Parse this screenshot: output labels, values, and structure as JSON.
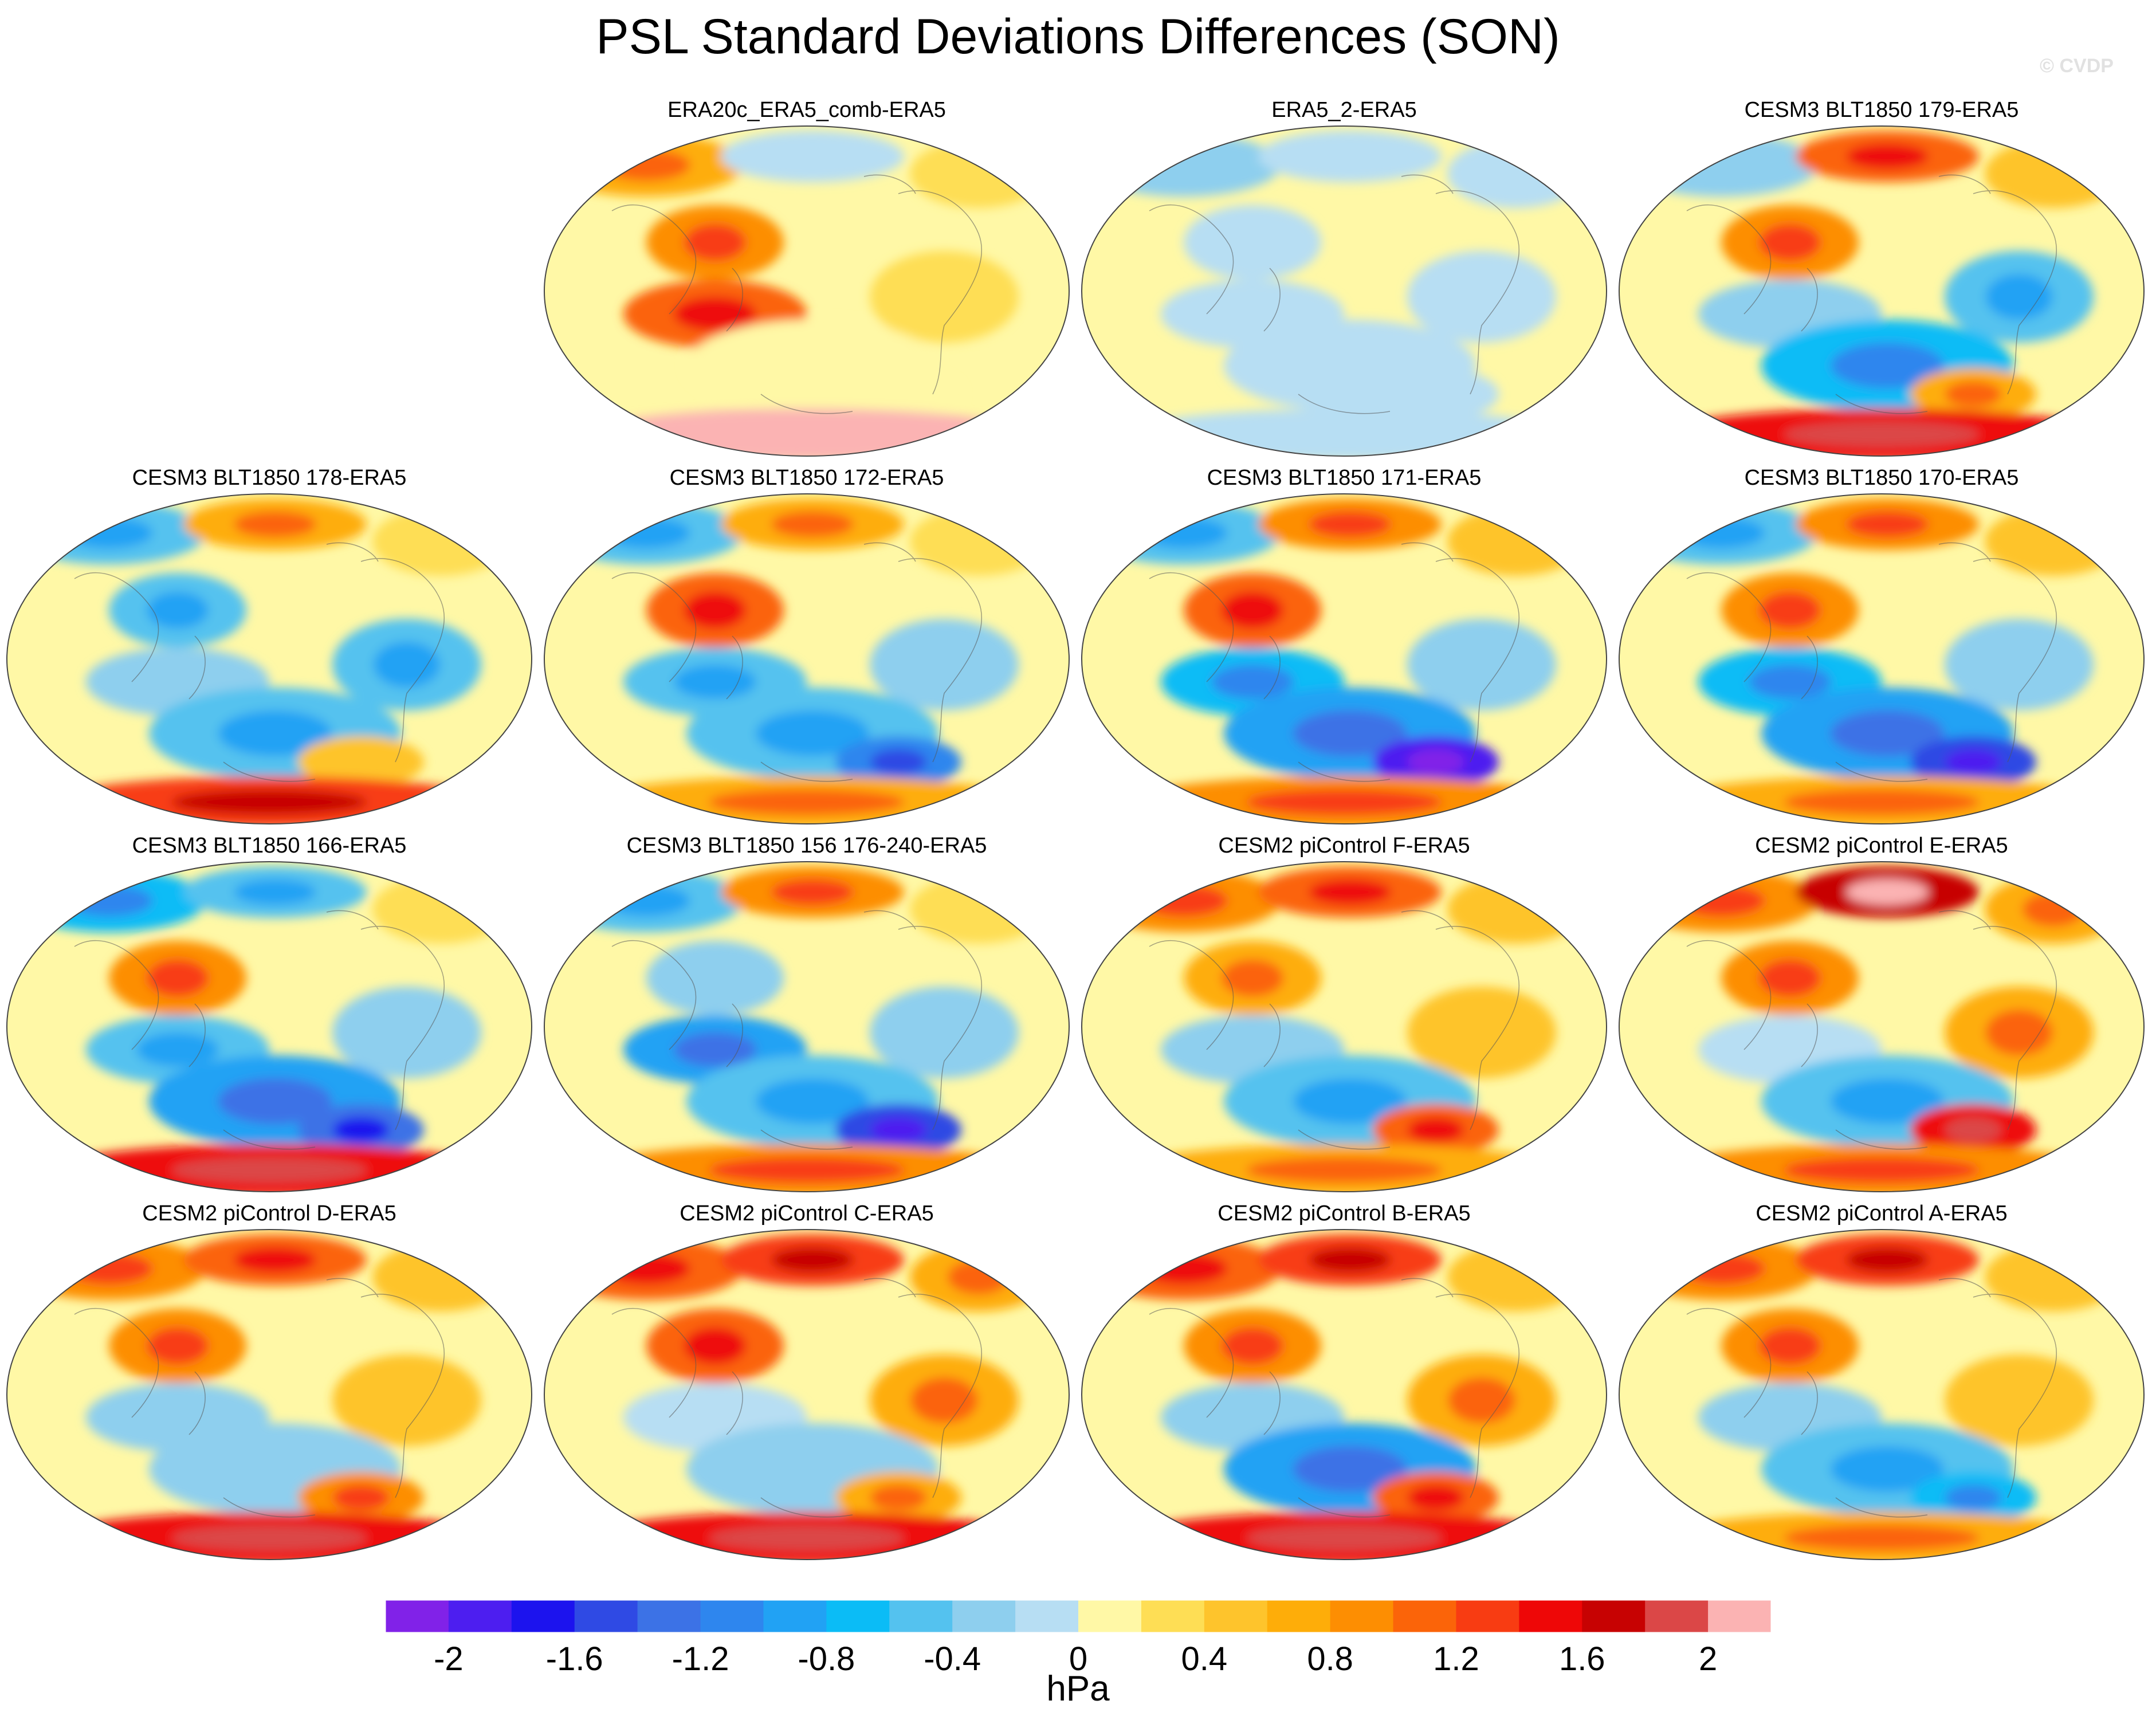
{
  "figure": {
    "title": "PSL Standard Deviations Differences (SON)",
    "watermark": "© CVDP",
    "units": "hPa"
  },
  "chart_data": {
    "type": "heatmap",
    "title": "PSL Standard Deviations Differences (SON)",
    "projection": "Robinson (global map panels, Pacific-centered)",
    "variable": "PSL standard deviation difference",
    "season": "SON",
    "units": "hPa",
    "colorbar": {
      "levels": [
        -2.2,
        -2.0,
        -1.8,
        -1.6,
        -1.4,
        -1.2,
        -1.0,
        -0.8,
        -0.6,
        -0.4,
        -0.2,
        0.0,
        0.2,
        0.4,
        0.6,
        0.8,
        1.0,
        1.2,
        1.4,
        1.6,
        1.8,
        2.0,
        2.2
      ],
      "tick_values": [
        -2,
        -1.6,
        -1.2,
        -0.8,
        -0.4,
        0,
        0.4,
        0.8,
        1.2,
        1.6,
        2
      ],
      "tick_labels": [
        "-2",
        "-1.6",
        "-1.2",
        "-0.8",
        "-0.4",
        "0",
        "0.4",
        "0.8",
        "1.2",
        "1.6",
        "2"
      ],
      "colors": [
        "#8122e8",
        "#4d1ef0",
        "#1c13ee",
        "#2f4ae4",
        "#3c72e6",
        "#2e86ee",
        "#21a2f4",
        "#0bbcf6",
        "#54c2ef",
        "#8ecfee",
        "#b7def3",
        "#fff8a6",
        "#fede55",
        "#fec42c",
        "#fead09",
        "#fd8e02",
        "#fb6409",
        "#f83c12",
        "#ee0707",
        "#c70202",
        "#db4747",
        "#fbb3b3"
      ],
      "label": "hPa"
    },
    "panels": [
      {
        "label": "ERA20c_ERA5_comb-ERA5",
        "pattern": [
          3,
          -1,
          1,
          4,
          5,
          1,
          0,
          0,
          10
        ]
      },
      {
        "label": "ERA5_2-ERA5",
        "pattern": [
          -2,
          -1,
          -1,
          -1,
          -1,
          -1,
          -1,
          -1,
          -1
        ]
      },
      {
        "label": "CESM3 BLT1850 179-ERA5",
        "pattern": [
          -2,
          5,
          2,
          4,
          -2,
          -3,
          -4,
          3,
          7
        ]
      },
      {
        "label": "CESM3 BLT1850 178-ERA5",
        "pattern": [
          -3,
          3,
          1,
          -3,
          -2,
          -3,
          -3,
          2,
          6
        ]
      },
      {
        "label": "CESM3 BLT1850 172-ERA5",
        "pattern": [
          -3,
          3,
          1,
          5,
          -3,
          -2,
          -3,
          -6,
          3
        ]
      },
      {
        "label": "CESM3 BLT1850 171-ERA5",
        "pattern": [
          -3,
          4,
          2,
          5,
          -4,
          -2,
          -5,
          -10,
          4
        ]
      },
      {
        "label": "CESM3 BLT1850 170-ERA5",
        "pattern": [
          -3,
          4,
          2,
          4,
          -4,
          -2,
          -5,
          -8,
          3
        ]
      },
      {
        "label": "CESM3 BLT1850 166-ERA5",
        "pattern": [
          -4,
          -3,
          1,
          4,
          -3,
          -2,
          -5,
          -7,
          7
        ]
      },
      {
        "label": "CESM3 BLT1850 156 176-240-ERA5",
        "pattern": [
          -3,
          4,
          1,
          -2,
          -5,
          -2,
          -3,
          -8,
          4
        ]
      },
      {
        "label": "CESM2 piControl F-ERA5",
        "pattern": [
          4,
          5,
          2,
          3,
          -2,
          2,
          -3,
          5,
          3
        ]
      },
      {
        "label": "CESM2 piControl E-ERA5",
        "pattern": [
          4,
          8,
          3,
          4,
          -1,
          3,
          -3,
          7,
          4
        ]
      },
      {
        "label": "CESM2 piControl D-ERA5",
        "pattern": [
          4,
          5,
          2,
          4,
          -2,
          2,
          -2,
          4,
          7
        ]
      },
      {
        "label": "CESM2 piControl C-ERA5",
        "pattern": [
          5,
          6,
          3,
          5,
          -1,
          3,
          -2,
          3,
          7
        ]
      },
      {
        "label": "CESM2 piControl B-ERA5",
        "pattern": [
          5,
          6,
          2,
          4,
          -2,
          3,
          -5,
          5,
          7
        ]
      },
      {
        "label": "CESM2 piControl A-ERA5",
        "pattern": [
          4,
          6,
          2,
          4,
          -2,
          2,
          -3,
          -4,
          3
        ]
      }
    ]
  }
}
